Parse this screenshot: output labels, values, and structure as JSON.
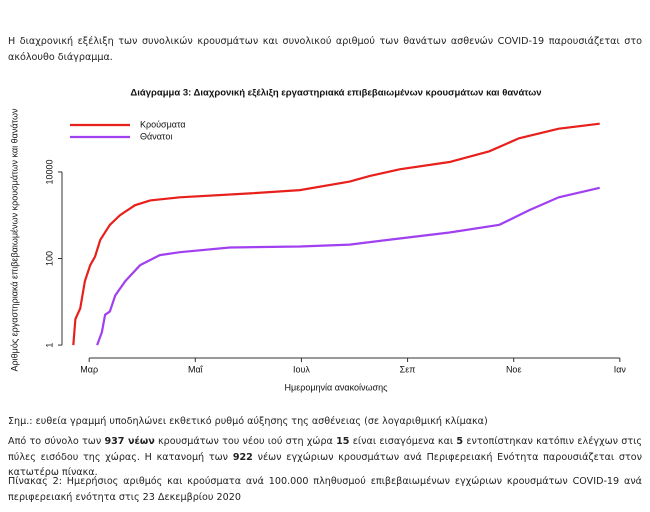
{
  "intro": {
    "text": "Η διαχρονική εξέλιξη των συνολικών κρουσμάτων και συνολικού αριθμού των θανάτων ασθενών COVID-19 παρουσιάζεται στο ακόλουθο διάγραμμα."
  },
  "chart_data": {
    "type": "line",
    "title": "Διάγραμμα 3: Διαχρονική εξέλιξη εργαστηριακά επιβεβαιωμένων κρουσμάτων και θανάτων",
    "xlabel": "Ημερομηνία ανακοίνωσης",
    "ylabel": "Αριθμός εργαστηριακά επιβεβαιωμένων κρουσμάτων και θανάτων",
    "log_y": true,
    "legend": "upper left",
    "xlim": [
      -0.55,
      10.38
    ],
    "xticks": [
      {
        "value": 0,
        "label": "Μαρ"
      },
      {
        "value": 2,
        "label": "Μαΐ"
      },
      {
        "value": 4,
        "label": "Ιουλ"
      },
      {
        "value": 6,
        "label": "Σεπ"
      },
      {
        "value": 8,
        "label": "Νοε"
      },
      {
        "value": 10,
        "label": "Ιαν"
      }
    ],
    "ylim": [
      0.59,
      270000
    ],
    "yticks": [
      1,
      100,
      10000
    ],
    "series": [
      {
        "name": "Κρούσματα",
        "color": "#e8201c",
        "x": [
          -0.3,
          -0.26,
          -0.17,
          -0.08,
          0.02,
          0.11,
          0.21,
          0.39,
          0.58,
          0.86,
          1.15,
          1.71,
          3.03,
          3.97,
          4.91,
          5.28,
          5.85,
          6.79,
          7.54,
          8.1,
          8.85,
          9.62
        ],
        "values": [
          1,
          4,
          7,
          30,
          70,
          110,
          270,
          600,
          1000,
          1700,
          2200,
          2600,
          3200,
          3800,
          6000,
          8000,
          11500,
          17000,
          30000,
          60000,
          100000,
          130000
        ]
      },
      {
        "name": "Θάνατοι",
        "color": "#a040f0",
        "x": [
          0.15,
          0.24,
          0.3,
          0.39,
          0.49,
          0.68,
          0.96,
          1.33,
          1.71,
          2.65,
          3.97,
          4.91,
          5.85,
          6.79,
          7.73,
          8.29,
          8.85,
          9.62
        ],
        "values": [
          1,
          2,
          5,
          6,
          14,
          30,
          70,
          120,
          140,
          180,
          190,
          210,
          290,
          400,
          600,
          1300,
          2600,
          4300
        ]
      }
    ]
  },
  "note": {
    "text": "Σημ.: ευθεία γραμμή υποδηλώνει εκθετικό ρυθμό αύξησης της ασθένειας (σε λογαριθμική κλίμακα)"
  },
  "summary": {
    "parts": [
      "Από το σύνολο των ",
      "937 νέων",
      " κρουσμάτων του νέου ιού στη χώρα ",
      "15",
      " είναι εισαγόμενα και ",
      "5",
      " εντοπίστηκαν κατόπιν ελέγχων στις πύλες εισόδου της χώρας. Η κατανομή των ",
      "922",
      " νέων εγχώριων κρουσμάτων ανά Περιφερειακή Ενότητα παρουσιάζεται στον κατωτέρω πίνακα."
    ]
  },
  "table_caption": {
    "text": "Πίνακας 2: Ημερήσιος αριθμός και κρούσματα ανά 100.000 πληθυσμού επιβεβαιωμένων εγχώριων κρουσμάτων COVID-19 ανά περιφερειακή ενότητα στις 23 Δεκεμβρίου 2020"
  }
}
